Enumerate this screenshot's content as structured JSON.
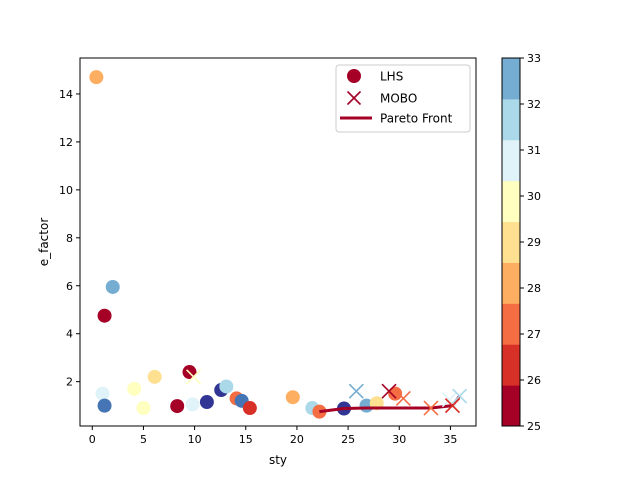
{
  "chart_data": {
    "type": "scatter",
    "title": "",
    "xlabel": "sty",
    "ylabel": "e_factor",
    "xlim": [
      -1.2,
      37.5
    ],
    "ylim": [
      0.15,
      15.5
    ],
    "xticks": [
      0,
      5,
      10,
      15,
      20,
      25,
      30,
      35
    ],
    "yticks": [
      2,
      4,
      6,
      8,
      10,
      12,
      14
    ],
    "grid": false,
    "legend": {
      "position": "top-right",
      "entries": [
        {
          "label": "LHS",
          "marker": "circle",
          "color": "#a50026"
        },
        {
          "label": "MOBO",
          "marker": "x",
          "color": "#a50026"
        },
        {
          "label": "Pareto Front",
          "marker": "line",
          "color": "#a50026"
        }
      ]
    },
    "colorbar": {
      "min": 25,
      "max": 33,
      "ticks": [
        25,
        26,
        27,
        28,
        29,
        30,
        31,
        32,
        33
      ],
      "bands": [
        "#a50026",
        "#d73027",
        "#f46d43",
        "#fdae61",
        "#fee090",
        "#ffffbf",
        "#e0f3f8",
        "#abd9e9",
        "#74add1"
      ]
    },
    "series": [
      {
        "name": "LHS",
        "marker": "circle",
        "points": [
          {
            "x": 0.4,
            "y": 14.7,
            "color": "#fdae61"
          },
          {
            "x": 1.0,
            "y": 1.5,
            "color": "#e0f3f8"
          },
          {
            "x": 1.2,
            "y": 1.0,
            "color": "#4575b4"
          },
          {
            "x": 1.2,
            "y": 4.75,
            "color": "#a50026"
          },
          {
            "x": 2.0,
            "y": 5.95,
            "color": "#74add1"
          },
          {
            "x": 4.1,
            "y": 1.7,
            "color": "#ffffbf"
          },
          {
            "x": 5.0,
            "y": 0.9,
            "color": "#ffffbf"
          },
          {
            "x": 6.1,
            "y": 2.2,
            "color": "#fee090"
          },
          {
            "x": 8.3,
            "y": 0.98,
            "color": "#a50026"
          },
          {
            "x": 9.5,
            "y": 2.4,
            "color": "#a50026"
          },
          {
            "x": 9.8,
            "y": 1.05,
            "color": "#e0f3f8"
          },
          {
            "x": 11.2,
            "y": 1.15,
            "color": "#313695"
          },
          {
            "x": 12.6,
            "y": 1.65,
            "color": "#313695"
          },
          {
            "x": 13.1,
            "y": 1.8,
            "color": "#abd9e9"
          },
          {
            "x": 14.1,
            "y": 1.3,
            "color": "#f46d43"
          },
          {
            "x": 14.6,
            "y": 1.2,
            "color": "#4575b4"
          },
          {
            "x": 15.4,
            "y": 0.9,
            "color": "#d73027"
          },
          {
            "x": 19.6,
            "y": 1.35,
            "color": "#fdae61"
          },
          {
            "x": 21.5,
            "y": 0.9,
            "color": "#abd9e9"
          },
          {
            "x": 22.2,
            "y": 0.75,
            "color": "#f46d43"
          },
          {
            "x": 24.6,
            "y": 0.88,
            "color": "#313695"
          },
          {
            "x": 26.8,
            "y": 1.0,
            "color": "#74add1"
          },
          {
            "x": 27.8,
            "y": 1.1,
            "color": "#fee090"
          },
          {
            "x": 29.6,
            "y": 1.5,
            "color": "#f46d43"
          }
        ]
      },
      {
        "name": "MOBO",
        "marker": "x",
        "points": [
          {
            "x": 9.9,
            "y": 2.2,
            "color": "#ffffbf"
          },
          {
            "x": 25.8,
            "y": 1.6,
            "color": "#74add1"
          },
          {
            "x": 29.0,
            "y": 1.6,
            "color": "#a50026"
          },
          {
            "x": 30.4,
            "y": 1.3,
            "color": "#f46d43"
          },
          {
            "x": 33.1,
            "y": 0.9,
            "color": "#f46d43"
          },
          {
            "x": 34.9,
            "y": 1.25,
            "color": "#e0f3f8"
          },
          {
            "x": 35.2,
            "y": 1.0,
            "color": "#d73027"
          },
          {
            "x": 35.9,
            "y": 1.4,
            "color": "#abd9e9"
          }
        ]
      },
      {
        "name": "Pareto Front",
        "marker": "line",
        "color": "#a50026",
        "points": [
          {
            "x": 22.2,
            "y": 0.75
          },
          {
            "x": 24.6,
            "y": 0.88
          },
          {
            "x": 26.8,
            "y": 0.9
          },
          {
            "x": 33.1,
            "y": 0.9
          },
          {
            "x": 35.2,
            "y": 1.0
          },
          {
            "x": 35.9,
            "y": 1.4
          }
        ]
      }
    ]
  }
}
